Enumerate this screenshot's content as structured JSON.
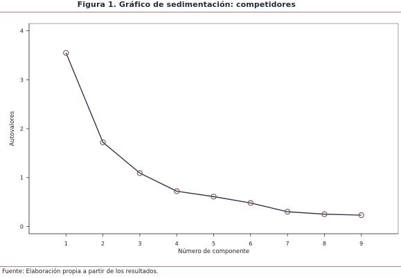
{
  "figure": {
    "title": "Figura 1. Gráfico de sedimentación: competidores",
    "source": "Fuente: Elaboración propia a partir de los resultados."
  },
  "chart_data": {
    "type": "line",
    "title": "",
    "xlabel": "Número de componente",
    "ylabel": "Autovalores",
    "x_ticks": [
      1,
      2,
      3,
      4,
      5,
      6,
      7,
      8,
      9
    ],
    "y_ticks": [
      0,
      1,
      2,
      3,
      4
    ],
    "xlim": [
      0,
      10
    ],
    "ylim": [
      -0.15,
      4.15
    ],
    "grid": false,
    "series": [
      {
        "x": [
          1,
          2,
          3,
          4,
          5,
          6,
          7,
          8,
          9
        ],
        "y": [
          3.55,
          1.72,
          1.09,
          0.72,
          0.61,
          0.48,
          0.3,
          0.25,
          0.23
        ],
        "color": "#1f2a4d",
        "marker": "circle-open",
        "marker_color": "#8a5a5a"
      }
    ]
  }
}
